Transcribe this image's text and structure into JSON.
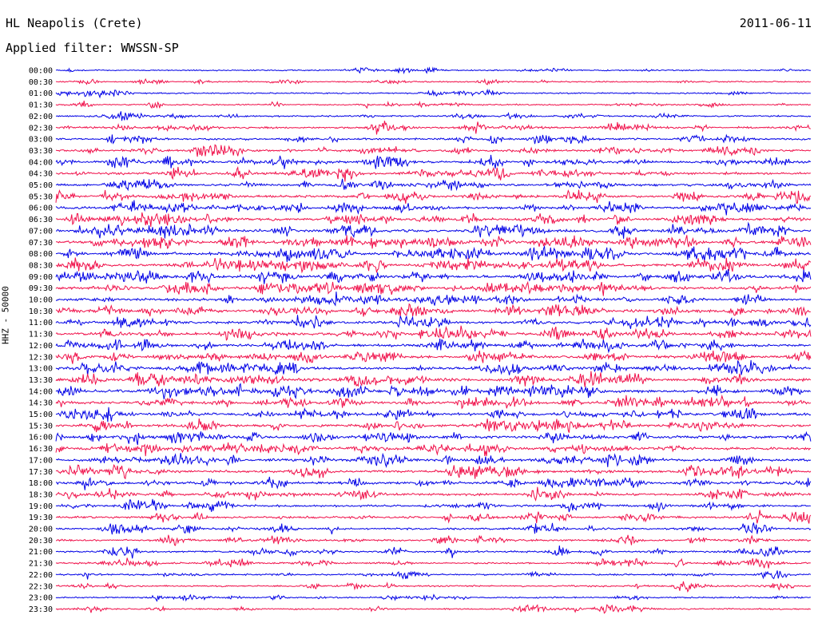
{
  "header": {
    "title": "HL Neapolis (Crete)",
    "filter": "Applied filter: WWSSN-SP",
    "date": "2011-06-11"
  },
  "chart_data": {
    "type": "line",
    "ylabel": "HHZ - 50000",
    "row_labels": [
      "00:00",
      "00:30",
      "01:00",
      "01:30",
      "02:00",
      "02:30",
      "03:00",
      "03:30",
      "04:00",
      "04:30",
      "05:00",
      "05:30",
      "06:00",
      "06:30",
      "07:00",
      "07:30",
      "08:00",
      "08:30",
      "09:00",
      "09:30",
      "10:00",
      "10:30",
      "11:00",
      "11:30",
      "12:00",
      "12:30",
      "13:00",
      "13:30",
      "14:00",
      "14:30",
      "15:00",
      "15:30",
      "16:00",
      "16:30",
      "17:00",
      "17:30",
      "18:00",
      "18:30",
      "19:00",
      "19:30",
      "20:00",
      "20:30",
      "21:00",
      "21:30",
      "22:00",
      "22:30",
      "23:00",
      "23:30"
    ],
    "series_colors": [
      "#0000e6",
      "#f0104a"
    ],
    "activity_levels": [
      0.15,
      0.2,
      0.2,
      0.25,
      0.3,
      0.45,
      0.55,
      0.6,
      0.7,
      0.75,
      0.75,
      0.8,
      0.85,
      0.9,
      0.9,
      0.9,
      0.95,
      0.95,
      0.9,
      0.85,
      0.9,
      0.9,
      0.9,
      0.85,
      0.85,
      0.85,
      0.9,
      0.9,
      0.95,
      0.9,
      0.9,
      0.85,
      0.9,
      0.9,
      0.85,
      0.8,
      0.7,
      0.6,
      0.55,
      0.55,
      0.5,
      0.5,
      0.45,
      0.4,
      0.3,
      0.3,
      0.25,
      0.25
    ]
  }
}
